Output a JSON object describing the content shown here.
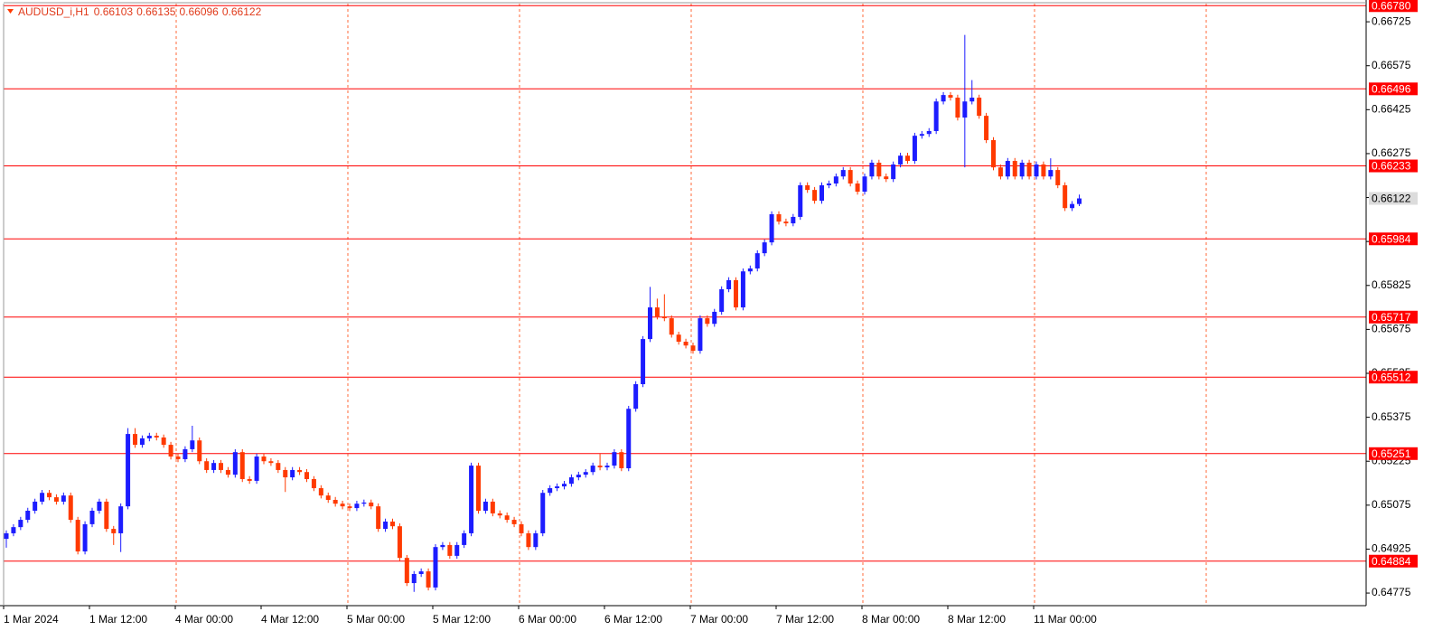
{
  "chart_data": {
    "type": "candlestick",
    "title": "AUDUSD_i,H1",
    "up_color": "#1c1cff",
    "down_color": "#ff3a00",
    "level_color": "#ff0000",
    "grid_color": "#ff6a3a",
    "grid": true,
    "ylim": [
      0.64732,
      0.66787
    ],
    "yticks": [
      0.66725,
      0.66575,
      0.66425,
      0.66275,
      0.66125,
      0.65975,
      0.65825,
      0.65675,
      0.65525,
      0.65375,
      0.65225,
      0.65075,
      0.64925,
      0.64775
    ],
    "levels": [
      {
        "value": 0.6678,
        "label": "0.66780"
      },
      0.66496,
      0.66233,
      0.65984,
      0.65717,
      0.65512,
      0.65251,
      0.64884
    ],
    "xticks": [
      {
        "value": 0,
        "label": "1 Mar 2024"
      },
      {
        "value": 12,
        "label": "1 Mar 12:00"
      },
      {
        "value": 24,
        "label": "4 Mar 00:00"
      },
      {
        "value": 36,
        "label": "4 Mar 12:00"
      },
      {
        "value": 48,
        "label": "5 Mar 00:00"
      },
      {
        "value": 60,
        "label": "5 Mar 12:00"
      },
      {
        "value": 72,
        "label": "6 Mar 00:00"
      },
      {
        "value": 84,
        "label": "6 Mar 12:00"
      },
      {
        "value": 96,
        "label": "7 Mar 00:00"
      },
      {
        "value": 108,
        "label": "7 Mar 12:00"
      },
      {
        "value": 120,
        "label": "8 Mar 00:00"
      },
      {
        "value": 132,
        "label": "8 Mar 12:00"
      },
      {
        "value": 144,
        "label": "11 Mar 00:00"
      }
    ],
    "ohlc": [
      [
        0.6496,
        0.64989,
        0.6493,
        0.64979
      ],
      [
        0.64979,
        0.6501,
        0.64969,
        0.65
      ],
      [
        0.65,
        0.65035,
        0.6499,
        0.65025
      ],
      [
        0.65025,
        0.65066,
        0.65015,
        0.65056
      ],
      [
        0.65056,
        0.65097,
        0.65046,
        0.65087
      ],
      [
        0.65087,
        0.65127,
        0.65077,
        0.65117
      ],
      [
        0.65117,
        0.65127,
        0.65092,
        0.65102
      ],
      [
        0.65102,
        0.65112,
        0.65077,
        0.65087
      ],
      [
        0.65087,
        0.65118,
        0.65077,
        0.65108
      ],
      [
        0.65108,
        0.65118,
        0.65015,
        0.65025
      ],
      [
        0.65025,
        0.65035,
        0.64907,
        0.64917
      ],
      [
        0.64917,
        0.6502,
        0.64907,
        0.6501
      ],
      [
        0.6501,
        0.65066,
        0.65,
        0.65056
      ],
      [
        0.65056,
        0.65097,
        0.65046,
        0.65087
      ],
      [
        0.65087,
        0.65097,
        0.64984,
        0.64994
      ],
      [
        0.64994,
        0.65004,
        0.64939,
        0.64979
      ],
      [
        0.64979,
        0.65081,
        0.64915,
        0.65071
      ],
      [
        0.65071,
        0.65338,
        0.65061,
        0.65318
      ],
      [
        0.65318,
        0.65338,
        0.65271,
        0.65281
      ],
      [
        0.65281,
        0.65313,
        0.65271,
        0.65303
      ],
      [
        0.65303,
        0.65322,
        0.65293,
        0.65312
      ],
      [
        0.65312,
        0.65322,
        0.65296,
        0.65306
      ],
      [
        0.65306,
        0.65316,
        0.65271,
        0.65281
      ],
      [
        0.65281,
        0.65291,
        0.65231,
        0.65241
      ],
      [
        0.65241,
        0.65251,
        0.65222,
        0.65232
      ],
      [
        0.65232,
        0.65276,
        0.65222,
        0.65266
      ],
      [
        0.65266,
        0.65346,
        0.65256,
        0.65296
      ],
      [
        0.65296,
        0.65306,
        0.65215,
        0.65225
      ],
      [
        0.65225,
        0.65235,
        0.65185,
        0.65195
      ],
      [
        0.65195,
        0.65229,
        0.65185,
        0.65219
      ],
      [
        0.65219,
        0.65229,
        0.65185,
        0.65195
      ],
      [
        0.65195,
        0.65205,
        0.65169,
        0.65179
      ],
      [
        0.65179,
        0.65266,
        0.65169,
        0.65256
      ],
      [
        0.65256,
        0.65266,
        0.65154,
        0.65164
      ],
      [
        0.65164,
        0.65174,
        0.65148,
        0.65158
      ],
      [
        0.65158,
        0.65251,
        0.65148,
        0.65241
      ],
      [
        0.65241,
        0.65251,
        0.65215,
        0.65225
      ],
      [
        0.65225,
        0.65235,
        0.65209,
        0.65219
      ],
      [
        0.65219,
        0.65229,
        0.65185,
        0.65195
      ],
      [
        0.65195,
        0.65205,
        0.6512,
        0.6517
      ],
      [
        0.6517,
        0.65205,
        0.6516,
        0.65195
      ],
      [
        0.65195,
        0.65205,
        0.65178,
        0.65188
      ],
      [
        0.65188,
        0.65198,
        0.65154,
        0.65164
      ],
      [
        0.65164,
        0.65174,
        0.65123,
        0.65133
      ],
      [
        0.65133,
        0.65143,
        0.65098,
        0.65108
      ],
      [
        0.65108,
        0.65118,
        0.65083,
        0.65093
      ],
      [
        0.65093,
        0.65103,
        0.6507,
        0.6508
      ],
      [
        0.6508,
        0.6509,
        0.65061,
        0.65071
      ],
      [
        0.65071,
        0.65081,
        0.65055,
        0.65065
      ],
      [
        0.65065,
        0.6509,
        0.65055,
        0.6508
      ],
      [
        0.6508,
        0.65094,
        0.6507,
        0.65084
      ],
      [
        0.65084,
        0.65094,
        0.65061,
        0.65071
      ],
      [
        0.65071,
        0.65081,
        0.64984,
        0.64994
      ],
      [
        0.64994,
        0.65029,
        0.64984,
        0.65019
      ],
      [
        0.65019,
        0.65029,
        0.64993,
        0.65003
      ],
      [
        0.65003,
        0.65013,
        0.64885,
        0.64895
      ],
      [
        0.64895,
        0.64905,
        0.64799,
        0.64809
      ],
      [
        0.64809,
        0.6485,
        0.64779,
        0.6484
      ],
      [
        0.6484,
        0.64859,
        0.6483,
        0.64849
      ],
      [
        0.64849,
        0.64859,
        0.64784,
        0.64794
      ],
      [
        0.64794,
        0.64942,
        0.64784,
        0.64932
      ],
      [
        0.64932,
        0.64949,
        0.64922,
        0.64939
      ],
      [
        0.64939,
        0.64949,
        0.64892,
        0.64902
      ],
      [
        0.64902,
        0.64949,
        0.64892,
        0.64939
      ],
      [
        0.64939,
        0.64989,
        0.64929,
        0.64979
      ],
      [
        0.64979,
        0.6522,
        0.64969,
        0.6521
      ],
      [
        0.6521,
        0.6522,
        0.65046,
        0.65056
      ],
      [
        0.65056,
        0.65097,
        0.65046,
        0.65087
      ],
      [
        0.65087,
        0.65097,
        0.65037,
        0.65047
      ],
      [
        0.65047,
        0.65057,
        0.6503,
        0.6504
      ],
      [
        0.6504,
        0.6505,
        0.65015,
        0.65025
      ],
      [
        0.65025,
        0.65035,
        0.65,
        0.6501
      ],
      [
        0.6501,
        0.6502,
        0.64969,
        0.64979
      ],
      [
        0.64979,
        0.64989,
        0.64922,
        0.64932
      ],
      [
        0.64932,
        0.64989,
        0.64922,
        0.64979
      ],
      [
        0.64979,
        0.65127,
        0.64969,
        0.65117
      ],
      [
        0.65117,
        0.65143,
        0.65107,
        0.65133
      ],
      [
        0.65133,
        0.65149,
        0.65123,
        0.65139
      ],
      [
        0.65139,
        0.65158,
        0.65129,
        0.65148
      ],
      [
        0.65148,
        0.6518,
        0.65138,
        0.6517
      ],
      [
        0.6517,
        0.65189,
        0.6516,
        0.65179
      ],
      [
        0.65179,
        0.65198,
        0.65169,
        0.65188
      ],
      [
        0.65188,
        0.6522,
        0.65178,
        0.6521
      ],
      [
        0.6521,
        0.6525,
        0.65194,
        0.65204
      ],
      [
        0.65204,
        0.6522,
        0.65194,
        0.6521
      ],
      [
        0.6521,
        0.65266,
        0.652,
        0.65256
      ],
      [
        0.65256,
        0.65266,
        0.65191,
        0.65201
      ],
      [
        0.65201,
        0.65414,
        0.65191,
        0.65404
      ],
      [
        0.65404,
        0.65498,
        0.65394,
        0.65488
      ],
      [
        0.65488,
        0.65652,
        0.65478,
        0.65642
      ],
      [
        0.65642,
        0.6582,
        0.65632,
        0.6575
      ],
      [
        0.6575,
        0.6578,
        0.65709,
        0.65719
      ],
      [
        0.65719,
        0.65795,
        0.65703,
        0.65713
      ],
      [
        0.65713,
        0.65723,
        0.65647,
        0.65657
      ],
      [
        0.65657,
        0.65667,
        0.65623,
        0.65633
      ],
      [
        0.65633,
        0.65643,
        0.6561,
        0.6562
      ],
      [
        0.6562,
        0.6563,
        0.65592,
        0.65602
      ],
      [
        0.65602,
        0.65723,
        0.65592,
        0.65713
      ],
      [
        0.65713,
        0.65723,
        0.65684,
        0.65694
      ],
      [
        0.65694,
        0.65745,
        0.65684,
        0.65735
      ],
      [
        0.65735,
        0.65822,
        0.65725,
        0.65812
      ],
      [
        0.65812,
        0.65853,
        0.65802,
        0.65843
      ],
      [
        0.65843,
        0.65853,
        0.6574,
        0.6575
      ],
      [
        0.6575,
        0.65883,
        0.6574,
        0.65873
      ],
      [
        0.65873,
        0.65893,
        0.65863,
        0.65883
      ],
      [
        0.65883,
        0.65945,
        0.65873,
        0.65935
      ],
      [
        0.65935,
        0.65982,
        0.65925,
        0.65972
      ],
      [
        0.65972,
        0.66078,
        0.65962,
        0.66068
      ],
      [
        0.66068,
        0.66078,
        0.66033,
        0.66043
      ],
      [
        0.66043,
        0.66053,
        0.66027,
        0.66037
      ],
      [
        0.66037,
        0.66069,
        0.66027,
        0.66059
      ],
      [
        0.66059,
        0.66177,
        0.66049,
        0.66167
      ],
      [
        0.66167,
        0.66177,
        0.66141,
        0.66151
      ],
      [
        0.66151,
        0.66161,
        0.66104,
        0.66114
      ],
      [
        0.66114,
        0.66177,
        0.66104,
        0.66167
      ],
      [
        0.66167,
        0.66183,
        0.66157,
        0.66173
      ],
      [
        0.66173,
        0.66207,
        0.66163,
        0.66197
      ],
      [
        0.66197,
        0.66229,
        0.66187,
        0.66219
      ],
      [
        0.66219,
        0.66229,
        0.66163,
        0.66173
      ],
      [
        0.66173,
        0.66183,
        0.66135,
        0.66145
      ],
      [
        0.66145,
        0.66207,
        0.66135,
        0.66197
      ],
      [
        0.66197,
        0.66254,
        0.66187,
        0.66244
      ],
      [
        0.66244,
        0.66254,
        0.66187,
        0.66197
      ],
      [
        0.66197,
        0.66207,
        0.66178,
        0.66188
      ],
      [
        0.66188,
        0.66248,
        0.66178,
        0.66238
      ],
      [
        0.66238,
        0.66278,
        0.66228,
        0.66268
      ],
      [
        0.66268,
        0.66278,
        0.6624,
        0.6625
      ],
      [
        0.6625,
        0.66346,
        0.6624,
        0.66336
      ],
      [
        0.66336,
        0.66352,
        0.66326,
        0.66342
      ],
      [
        0.66342,
        0.66362,
        0.66332,
        0.66352
      ],
      [
        0.66352,
        0.66463,
        0.66342,
        0.66453
      ],
      [
        0.66453,
        0.66485,
        0.66443,
        0.66475
      ],
      [
        0.66475,
        0.66485,
        0.66456,
        0.66466
      ],
      [
        0.66466,
        0.66476,
        0.66388,
        0.66398
      ],
      [
        0.66398,
        0.6668,
        0.66228,
        0.66453
      ],
      [
        0.66453,
        0.66526,
        0.66443,
        0.66466
      ],
      [
        0.66466,
        0.66476,
        0.66394,
        0.66404
      ],
      [
        0.66404,
        0.66414,
        0.66311,
        0.66321
      ],
      [
        0.66321,
        0.66331,
        0.66218,
        0.66228
      ],
      [
        0.66228,
        0.66238,
        0.66187,
        0.66197
      ],
      [
        0.66197,
        0.6626,
        0.66187,
        0.6625
      ],
      [
        0.6625,
        0.6626,
        0.66187,
        0.66197
      ],
      [
        0.66197,
        0.66254,
        0.66187,
        0.66244
      ],
      [
        0.66244,
        0.66254,
        0.66187,
        0.66197
      ],
      [
        0.66197,
        0.66248,
        0.66187,
        0.66238
      ],
      [
        0.66238,
        0.66248,
        0.66187,
        0.66197
      ],
      [
        0.66197,
        0.66259,
        0.66187,
        0.66219
      ],
      [
        0.66219,
        0.66229,
        0.66157,
        0.66167
      ],
      [
        0.66167,
        0.66177,
        0.66079,
        0.66089
      ],
      [
        0.66089,
        0.66113,
        0.66079,
        0.66103
      ],
      [
        0.66103,
        0.66135,
        0.66096,
        0.66122
      ]
    ]
  }
}
